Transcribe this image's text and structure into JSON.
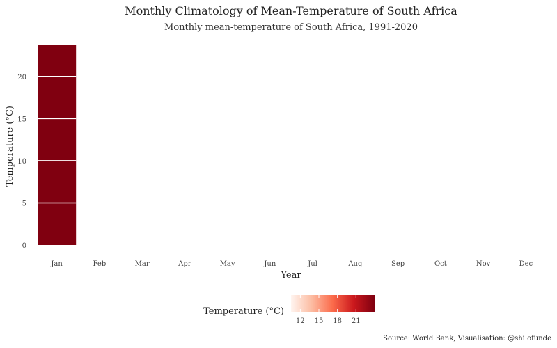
{
  "chart_data": {
    "type": "bar",
    "title": "Monthly Climatology of Mean-Temperature of South Africa",
    "subtitle": "Monthly mean-temperature of South Africa, 1991-2020",
    "xlabel": "Year",
    "ylabel": "Temperature (°C)",
    "categories": [
      "Jan",
      "Feb",
      "Mar",
      "Apr",
      "May",
      "Jun",
      "Jul",
      "Aug",
      "Sep",
      "Oct",
      "Nov",
      "Dec"
    ],
    "values": [
      23.7,
      null,
      null,
      null,
      null,
      null,
      null,
      null,
      null,
      null,
      null,
      null
    ],
    "ylim": [
      0,
      23.7
    ],
    "yticks": [
      0,
      5,
      10,
      15,
      20
    ],
    "grid": false,
    "bar_bands": [
      0,
      5,
      10,
      15,
      20
    ],
    "legend": {
      "title": "Temperature (°C)",
      "position": "bottom",
      "ticks": [
        12,
        15,
        18,
        21
      ],
      "range": [
        10.5,
        24
      ],
      "colors": [
        "#fff5f0",
        "#fcbba1",
        "#fb6a4a",
        "#cb181d",
        "#7f0010"
      ]
    },
    "bar_color": "#800010",
    "caption": "Source: World Bank, Visualisation: @shilofunde"
  }
}
